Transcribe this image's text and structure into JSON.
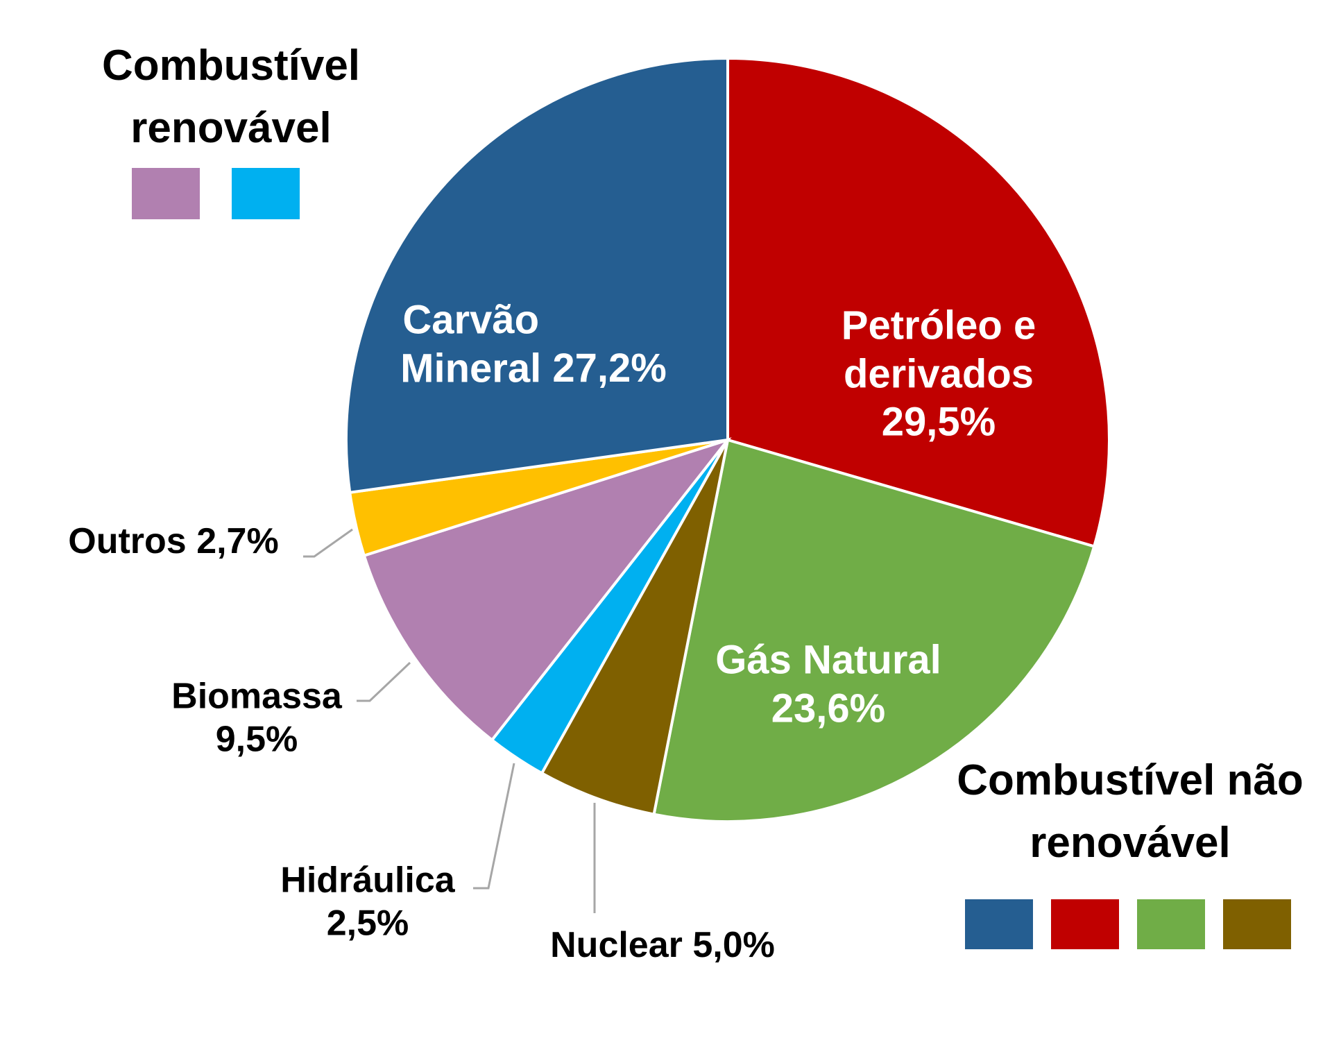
{
  "chart_data": {
    "type": "pie",
    "categories": [
      "Petróleo e derivados",
      "Gás Natural",
      "Nuclear",
      "Hidráulica",
      "Biomassa",
      "Outros",
      "Carvão Mineral"
    ],
    "values": [
      29.5,
      23.6,
      5.0,
      2.5,
      9.5,
      2.7,
      27.2
    ],
    "value_labels": [
      "29,5%",
      "23,6%",
      "5,0%",
      "2,5%",
      "9,5%",
      "2,7%",
      "27,2%"
    ],
    "colors": [
      "#c00000",
      "#70ad47",
      "#7f6000",
      "#00b0f0",
      "#b180b0",
      "#ffc000",
      "#255e91"
    ],
    "legend": [
      {
        "title": "Combustível renovável",
        "colors": [
          "#b180b0",
          "#00b0f0"
        ]
      },
      {
        "title": "Combustível não renovável",
        "colors": [
          "#255e91",
          "#c00000",
          "#70ad47",
          "#7f6000"
        ]
      }
    ]
  }
}
